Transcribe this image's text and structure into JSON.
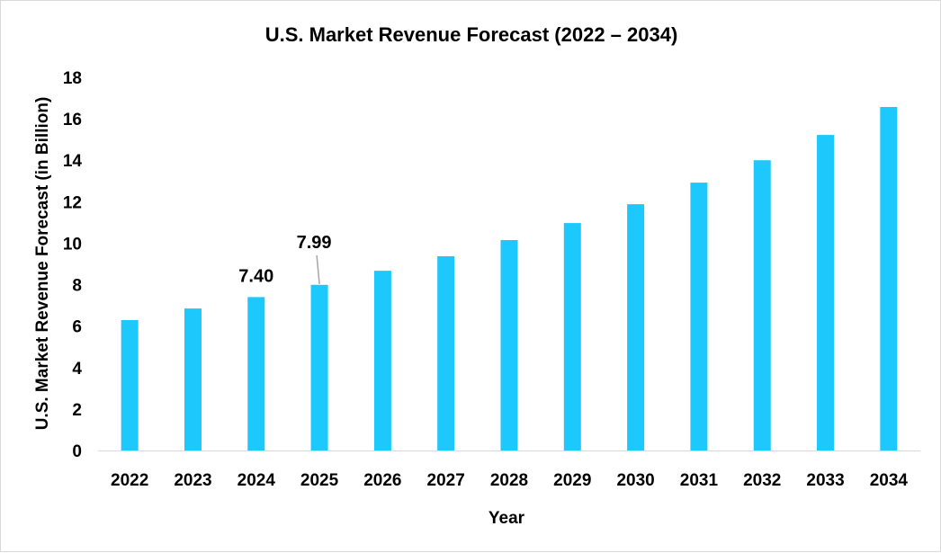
{
  "chart_data": {
    "type": "bar",
    "title": "U.S. Market Revenue Forecast (2022 – 2034)",
    "xlabel": "Year",
    "ylabel": "U.S. Market Revenue Forecast (in Billion)",
    "categories": [
      "2022",
      "2023",
      "2024",
      "2025",
      "2026",
      "2027",
      "2028",
      "2029",
      "2030",
      "2031",
      "2032",
      "2033",
      "2034"
    ],
    "values": [
      6.29,
      6.85,
      7.4,
      7.99,
      8.67,
      9.37,
      10.15,
      10.97,
      11.88,
      12.92,
      14.0,
      15.22,
      16.57
    ],
    "data_labels": {
      "2024": "7.40",
      "2025": "7.99"
    },
    "ylim": [
      0,
      18
    ],
    "yticks": [
      "0",
      "2",
      "4",
      "6",
      "8",
      "10",
      "12",
      "14",
      "16",
      "18"
    ],
    "grid": false,
    "bar_color": "#1CC8FC"
  }
}
